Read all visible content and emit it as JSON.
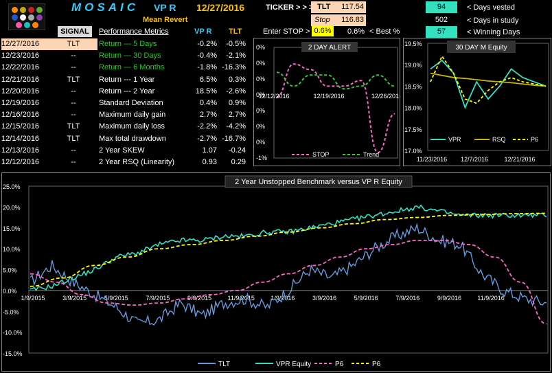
{
  "header": {
    "brand": "MOSAIC",
    "strategy": "VP R",
    "date": "12/27/2016",
    "subtitle": "Mean Revert",
    "ticker_label": "TICKER > > >",
    "ticker": "TLT",
    "ticker_price": "117.54",
    "stop_label": "Stop",
    "stop_price": "116.83",
    "enter_stop_label": "Enter  STOP >",
    "enter_stop_value": "0.6%",
    "best_value": "0.6%",
    "best_label": "< Best %",
    "days_vested": "94",
    "days_vested_label": "< Days vested",
    "days_in_study": "502",
    "days_in_study_label": "< Days in study",
    "winning_days": "57",
    "winning_days_label": "< Winning Days"
  },
  "signal_table": {
    "header": "SIGNAL",
    "rows": [
      {
        "date": "12/27/2016",
        "signal": "TLT"
      },
      {
        "date": "12/23/2016",
        "signal": "--"
      },
      {
        "date": "12/22/2016",
        "signal": "--"
      },
      {
        "date": "12/21/2016",
        "signal": "TLT"
      },
      {
        "date": "12/20/2016",
        "signal": "--"
      },
      {
        "date": "12/19/2016",
        "signal": "--"
      },
      {
        "date": "12/16/2016",
        "signal": "--"
      },
      {
        "date": "12/15/2016",
        "signal": "TLT"
      },
      {
        "date": "12/14/2016",
        "signal": "TLT"
      },
      {
        "date": "12/13/2016",
        "signal": "--"
      },
      {
        "date": "12/12/2016",
        "signal": "--"
      }
    ]
  },
  "metrics": {
    "header": "Performance Metrics",
    "col1": "VP R",
    "col2": "TLT",
    "rows": [
      {
        "name": "Return --- 5 Days",
        "vpr": "-0.2%",
        "tlt": "-0.5%",
        "green": true
      },
      {
        "name": "Return --- 30 Days",
        "vpr": "-0.4%",
        "tlt": "-2.1%",
        "green": true
      },
      {
        "name": "Return --- 6 Months",
        "vpr": "-1.8%",
        "tlt": "-16.3%",
        "green": true
      },
      {
        "name": "Return --- 1 Year",
        "vpr": "6.5%",
        "tlt": "0.3%",
        "green": false
      },
      {
        "name": "Return --- 2 Year",
        "vpr": "18.5%",
        "tlt": "-2.6%",
        "green": false
      },
      {
        "name": "Standard Deviation",
        "vpr": "0.4%",
        "tlt": "0.9%",
        "green": false
      },
      {
        "name": "Maximum daily gain",
        "vpr": "2.7%",
        "tlt": "2.7%",
        "green": false
      },
      {
        "name": "Maximum daily loss",
        "vpr": "-2.2%",
        "tlt": "-4.2%",
        "green": false
      },
      {
        "name": "Max total drawdown",
        "vpr": "-2.7%",
        "tlt": "-16.7%",
        "green": false
      },
      {
        "name": "2 Year SKEW",
        "vpr": "1.07",
        "tlt": "-0.24",
        "green": false
      },
      {
        "name": "2 Year RSQ  (Linearity)",
        "vpr": "0.93",
        "tlt": "0.29",
        "green": false
      }
    ]
  },
  "colors": {
    "accent_yellow": "#ffd700",
    "accent_cyan": "#33e0c0",
    "green_text": "#22cc22",
    "brand_cyan": "#33ccff",
    "header_orange": "#ffc000"
  },
  "chart_data": [
    {
      "type": "line",
      "title": "2 DAY  ALERT",
      "x_ticks": [
        "12/12/2016",
        "12/19/2016",
        "12/26/201"
      ],
      "y_ticks": [
        "0%",
        "0%",
        "0%",
        "0%",
        "0%",
        "0%",
        "0%",
        "-1%"
      ],
      "series": [
        {
          "name": "STOP",
          "color": "#ff66cc",
          "dash": true,
          "values": [
            0.1,
            0.7,
            0.6,
            0.3,
            0.3,
            0.4,
            -0.9,
            -0.2
          ]
        },
        {
          "name": "Trend",
          "color": "#33cc33",
          "dash": true,
          "values": [
            0.55,
            0.3,
            0.5,
            0.5,
            0.25,
            0.3,
            0.5,
            0.3
          ]
        }
      ]
    },
    {
      "type": "line",
      "title": "30 DAY  M   Equity",
      "x_ticks": [
        "11/23/2016",
        "12/7/2016",
        "12/21/2016"
      ],
      "ylim": [
        17.0,
        19.5
      ],
      "y_ticks": [
        "19.5%",
        "19.0%",
        "18.5%",
        "18.0%",
        "17.5%",
        "17.0%"
      ],
      "series": [
        {
          "name": "VPR",
          "color": "#33e0c0",
          "values": [
            18.9,
            19.1,
            18.8,
            18.0,
            18.6,
            18.2,
            18.5,
            18.9,
            18.7,
            18.6,
            18.5
          ]
        },
        {
          "name": "RSQ",
          "color": "#c8b400",
          "values": [
            18.8,
            18.75,
            18.7,
            18.68,
            18.65,
            18.62,
            18.6,
            18.58,
            18.55,
            18.52,
            18.5
          ]
        },
        {
          "name": "P6",
          "color": "#ffff00",
          "dash": true,
          "values": [
            18.6,
            19.2,
            18.8,
            18.2,
            18.1,
            18.4,
            18.6,
            18.7,
            18.6,
            18.55,
            18.5
          ]
        }
      ]
    },
    {
      "type": "line",
      "title": "2 Year  Unstopped Benchmark  versus  VP  R  Equity",
      "x_ticks": [
        "1/9/2015",
        "3/9/2015",
        "5/9/2015",
        "7/9/2015",
        "9/9/2015",
        "11/9/2015",
        "1/9/2016",
        "3/9/2016",
        "5/9/2016",
        "7/9/2016",
        "9/9/2016",
        "11/9/2016"
      ],
      "ylim": [
        -15.0,
        25.0
      ],
      "y_ticks": [
        "25.0%",
        "20.0%",
        "15.0%",
        "10.0%",
        "5.0%",
        "0.0%",
        "-5.0%",
        "-10.0%",
        "-15.0%"
      ],
      "series": [
        {
          "name": "TLT",
          "color": "#6699dd",
          "values": [
            2,
            6,
            2,
            -1,
            -4,
            -8,
            -7,
            -3,
            -6,
            -3,
            -2,
            -4,
            0,
            5,
            3,
            6,
            10,
            13,
            15,
            12,
            11,
            4,
            0,
            -2,
            -3
          ]
        },
        {
          "name": "VPR Equity",
          "color": "#33e0c0",
          "values": [
            0,
            1,
            3,
            5,
            8,
            9,
            11,
            12,
            12,
            13,
            13,
            14,
            14,
            15,
            16,
            17,
            18,
            19,
            20,
            19,
            18,
            18,
            18,
            18,
            18
          ]
        },
        {
          "name": "P6",
          "color": "#ff66cc",
          "dash": true,
          "values": [
            4,
            2,
            -1,
            -3,
            -3.5,
            -3,
            -2,
            -1,
            0,
            2,
            4,
            6,
            8,
            10,
            11,
            12,
            12,
            11,
            8,
            2,
            -8
          ]
        },
        {
          "name": "P6",
          "color": "#ffff00",
          "dash": true,
          "values": [
            1,
            3,
            6,
            8,
            10,
            11,
            12,
            13,
            14,
            15,
            16,
            17,
            17.5,
            18,
            18.2,
            18.4,
            18.5
          ]
        }
      ]
    }
  ]
}
